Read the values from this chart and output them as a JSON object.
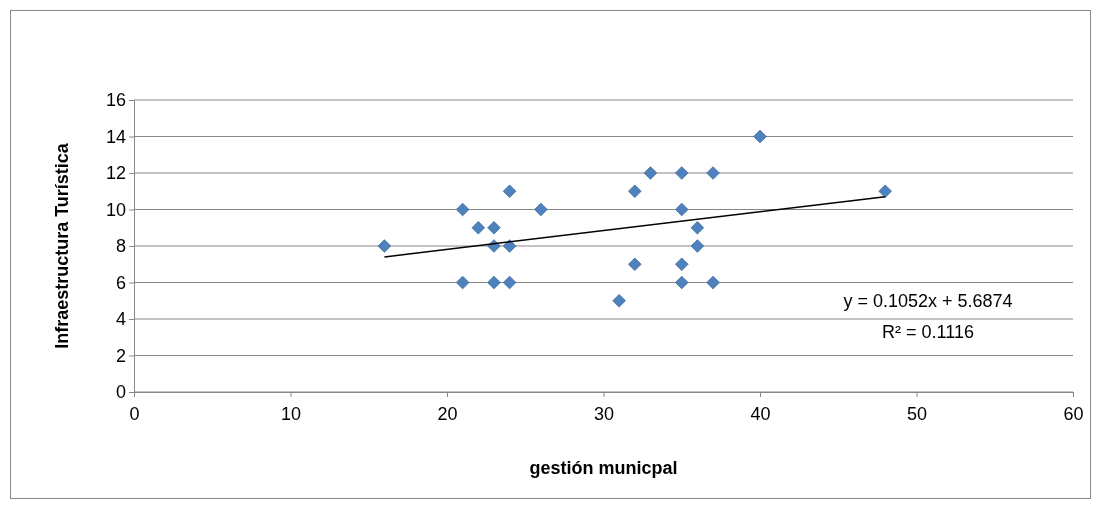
{
  "chart_data": {
    "type": "scatter",
    "xlabel": "gestión municpal",
    "ylabel": "Infraestructura Turística",
    "xlim": [
      0,
      60
    ],
    "xticks": [
      0,
      10,
      20,
      30,
      40,
      50,
      60
    ],
    "ylim": [
      0,
      16
    ],
    "yticks": [
      0,
      2,
      4,
      6,
      8,
      10,
      12,
      14,
      16
    ],
    "grid": "y",
    "series": [
      {
        "marker": "diamond",
        "color": "#4f81bd",
        "x": [
          16,
          21,
          21,
          22,
          23,
          23,
          23,
          24,
          24,
          24,
          26,
          31,
          32,
          32,
          33,
          35,
          35,
          35,
          35,
          36,
          36,
          37,
          37,
          40,
          48
        ],
        "values": [
          8,
          10,
          6,
          9,
          9,
          8,
          6,
          11,
          8,
          6,
          10,
          5,
          11,
          7,
          12,
          12,
          10,
          7,
          6,
          9,
          8,
          12,
          6,
          14,
          11
        ]
      },
      {
        "type": "line",
        "color": "#000000",
        "x": [
          16,
          48
        ],
        "values": [
          7.4,
          10.7
        ]
      }
    ],
    "annotations": [
      "y = 0.1052x + 5.6874",
      "R² = 0.1116"
    ]
  }
}
